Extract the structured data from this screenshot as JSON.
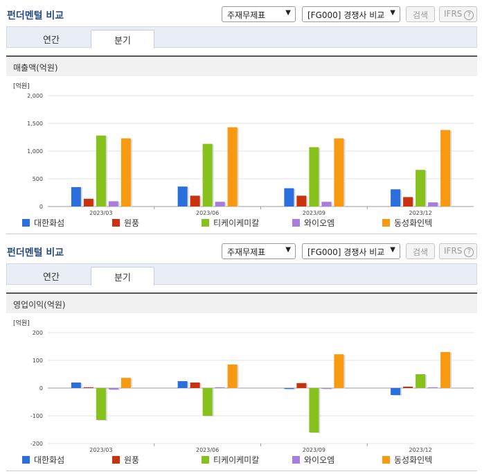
{
  "sections": [
    {
      "header_title": "펀더멘털 비교",
      "statement_select": "주재무제표",
      "compare_select": "[FG000] 경쟁사 비교",
      "search_button": "검색",
      "ifrs_label": "IFRS",
      "ifrs_help": "?",
      "tabs": [
        "연간",
        "분기"
      ],
      "active_tab": "분기",
      "chart_title": "매출액(억원)"
    },
    {
      "header_title": "펀더멘털 비교",
      "statement_select": "주재무제표",
      "compare_select": "[FG000] 경쟁사 비교",
      "search_button": "검색",
      "ifrs_label": "IFRS",
      "ifrs_help": "?",
      "tabs": [
        "연간",
        "분기"
      ],
      "active_tab": "분기",
      "chart_title": "영업이익(억원)"
    }
  ],
  "legend": [
    {
      "name": "대한화섬",
      "color": "#2a6fdb"
    },
    {
      "name": "원풍",
      "color": "#c8320f"
    },
    {
      "name": "티케이케미칼",
      "color": "#86c21b"
    },
    {
      "name": "와이오엠",
      "color": "#a87ddb"
    },
    {
      "name": "동성화인텍",
      "color": "#f79a11"
    }
  ],
  "chart_data": [
    {
      "type": "bar",
      "unit_label": "[억원]",
      "categories": [
        "2023/03",
        "2023/06",
        "2023/09",
        "2023/12"
      ],
      "ylim": [
        0,
        2000
      ],
      "yticks": [
        0,
        500,
        1000,
        1500,
        2000
      ],
      "ytick_labels": [
        "0",
        "500",
        "1,000",
        "1,500",
        "2,000"
      ],
      "grid": true,
      "legend_position": "bottom",
      "series": [
        {
          "name": "대한화섬",
          "values": [
            350,
            360,
            330,
            310
          ]
        },
        {
          "name": "원풍",
          "values": [
            140,
            195,
            195,
            170
          ]
        },
        {
          "name": "티케이케미칼",
          "values": [
            1280,
            1130,
            1070,
            660
          ]
        },
        {
          "name": "와이오엠",
          "values": [
            95,
            85,
            85,
            75
          ]
        },
        {
          "name": "동성화인텍",
          "values": [
            1230,
            1430,
            1230,
            1380
          ]
        }
      ]
    },
    {
      "type": "bar",
      "unit_label": "[억원]",
      "categories": [
        "2023/03",
        "2023/06",
        "2023/09",
        "2023/12"
      ],
      "ylim": [
        -200,
        200
      ],
      "yticks": [
        -200,
        -100,
        0,
        100,
        200
      ],
      "ytick_labels": [
        "-200",
        "-100",
        "0",
        "100",
        "200"
      ],
      "grid": true,
      "legend_position": "bottom",
      "series": [
        {
          "name": "대한화섬",
          "values": [
            20,
            25,
            -3,
            -25
          ]
        },
        {
          "name": "원풍",
          "values": [
            3,
            20,
            18,
            5
          ]
        },
        {
          "name": "티케이케미칼",
          "values": [
            -115,
            -100,
            -160,
            50
          ]
        },
        {
          "name": "와이오엠",
          "values": [
            -5,
            3,
            0,
            3
          ]
        },
        {
          "name": "동성화인텍",
          "values": [
            37,
            85,
            122,
            130
          ]
        }
      ]
    }
  ]
}
